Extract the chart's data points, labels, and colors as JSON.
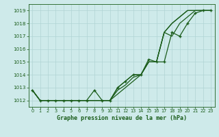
{
  "title": "Graphe pression niveau de la mer (hPa)",
  "hours": [
    0,
    1,
    2,
    3,
    4,
    5,
    6,
    7,
    8,
    9,
    10,
    11,
    12,
    13,
    14,
    15,
    16,
    17,
    18,
    19,
    20,
    21,
    22,
    23
  ],
  "line_markers": [
    1012.8,
    1012.0,
    1012.0,
    1012.0,
    1012.0,
    1012.0,
    1012.0,
    1012.0,
    1012.8,
    1012.0,
    1012.0,
    1013.0,
    1013.5,
    1014.0,
    1014.0,
    1015.2,
    1015.0,
    1015.0,
    1017.3,
    1017.0,
    1018.0,
    1018.8,
    1019.0,
    1019.0
  ],
  "line_a": [
    1012.8,
    1012.0,
    1012.0,
    1012.0,
    1012.0,
    1012.0,
    1012.0,
    1012.0,
    1012.0,
    1012.0,
    1012.0,
    1012.5,
    1013.0,
    1013.5,
    1014.0,
    1015.0,
    1015.0,
    1017.3,
    1018.0,
    1018.5,
    1019.0,
    1019.0,
    1019.0,
    1019.0
  ],
  "line_b": [
    1012.8,
    1012.0,
    1012.0,
    1012.0,
    1012.0,
    1012.0,
    1012.0,
    1012.0,
    1012.0,
    1012.0,
    1012.0,
    1012.8,
    1013.2,
    1013.8,
    1014.0,
    1015.0,
    1015.0,
    1017.3,
    1018.0,
    1018.5,
    1019.0,
    1019.0,
    1019.0,
    1019.0
  ],
  "line_c": [
    1012.8,
    1012.0,
    1012.0,
    1012.0,
    1012.0,
    1012.0,
    1012.0,
    1012.0,
    1012.0,
    1012.0,
    1012.0,
    1013.0,
    1013.5,
    1014.0,
    1014.0,
    1015.0,
    1015.0,
    1017.3,
    1017.0,
    1018.0,
    1018.5,
    1019.0,
    1019.0,
    1019.0
  ],
  "ylim_min": 1011.5,
  "ylim_max": 1019.5,
  "yticks": [
    1012,
    1013,
    1014,
    1015,
    1016,
    1017,
    1018,
    1019
  ],
  "line_color": "#1a5c1a",
  "bg_color": "#ceeaea",
  "grid_color": "#b0d4d4"
}
